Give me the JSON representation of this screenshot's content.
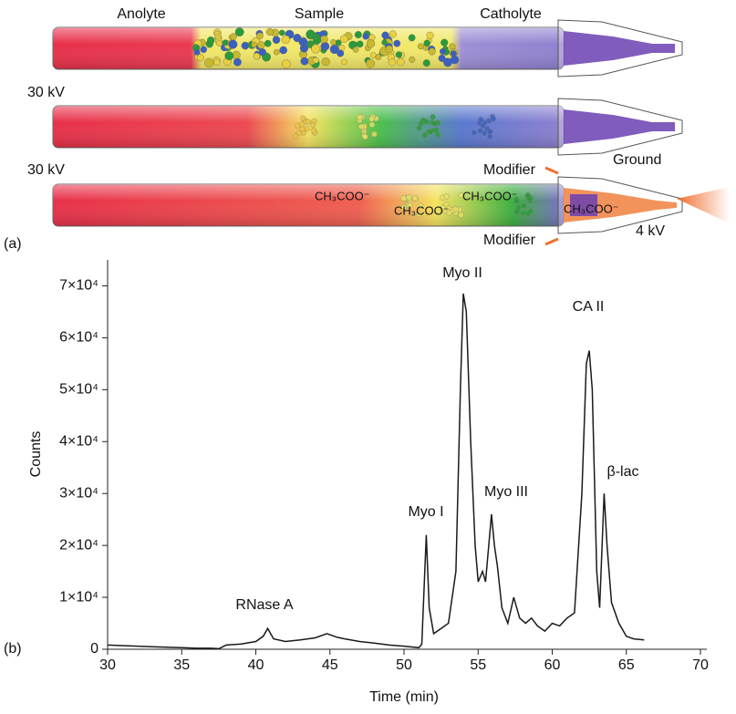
{
  "diagram": {
    "panel_a": "(a)",
    "labels": {
      "anolyte": "Anolyte",
      "sample": "Sample",
      "catholyte": "Catholyte",
      "voltage_1": "30 kV",
      "voltage_2": "30 kV",
      "ground": "Ground",
      "modifier_top": "Modifier",
      "modifier_bottom": "Modifier",
      "esi_voltage": "4 kV"
    },
    "ions": [
      "CH₃COO⁻",
      "CH₃COO⁻",
      "CH₃COO⁻",
      "CH₃COO⁻"
    ]
  },
  "chart_data": {
    "type": "line",
    "panel_label": "(b)",
    "x_label": "Time (min)",
    "y_label": "Counts",
    "color": "#1a1a1a",
    "xlim": [
      30,
      70
    ],
    "ylim": [
      0,
      75000
    ],
    "xticks": [
      30,
      35,
      40,
      45,
      50,
      55,
      60,
      65,
      70
    ],
    "yticks": [
      0,
      {
        "value": 10000,
        "label": "1×10⁴"
      },
      {
        "value": 20000,
        "label": "2×10⁴"
      },
      {
        "value": 30000,
        "label": "3×10⁴"
      },
      {
        "value": 40000,
        "label": "4×10⁴"
      },
      {
        "value": 50000,
        "label": "5×10⁴"
      },
      {
        "value": 60000,
        "label": "6×10⁴"
      },
      {
        "value": 70000,
        "label": "7×10⁴"
      }
    ],
    "x": [
      30,
      31,
      32,
      33,
      34,
      35,
      36,
      37,
      37.5,
      38,
      39,
      40,
      40.5,
      40.8,
      41.2,
      42,
      43,
      44,
      44.8,
      45.5,
      46,
      47,
      48,
      49,
      50,
      51,
      51.2,
      51.5,
      51.7,
      52,
      52.5,
      53,
      53.5,
      53.8,
      54,
      54.2,
      54.5,
      54.8,
      55,
      55.3,
      55.5,
      55.9,
      56.1,
      56.3,
      56.6,
      57,
      57.4,
      57.8,
      58.2,
      58.6,
      59,
      59.5,
      60,
      60.5,
      61,
      61.5,
      62,
      62.3,
      62.5,
      62.7,
      63,
      63.2,
      63.5,
      63.7,
      64,
      64.5,
      65,
      65.5,
      66.2
    ],
    "values": [
      800,
      700,
      600,
      500,
      400,
      300,
      200,
      200,
      100,
      800,
      1000,
      1500,
      2500,
      4000,
      2000,
      1500,
      1800,
      2200,
      3000,
      2300,
      2000,
      1500,
      1200,
      800,
      600,
      300,
      1000,
      22000,
      8000,
      3000,
      4000,
      5000,
      15000,
      50000,
      68500,
      65000,
      40000,
      20000,
      13000,
      15000,
      13000,
      26000,
      20000,
      16000,
      8000,
      5000,
      10000,
      6000,
      5000,
      6000,
      4500,
      3500,
      5000,
      4500,
      6000,
      7000,
      30000,
      55000,
      57500,
      50000,
      15000,
      8000,
      30000,
      20000,
      9000,
      5000,
      2500,
      2000,
      1800
    ],
    "annotations": [
      "RNase A",
      "Myo I",
      "Myo II",
      "Myo III",
      "CA II",
      "β-lac"
    ]
  }
}
